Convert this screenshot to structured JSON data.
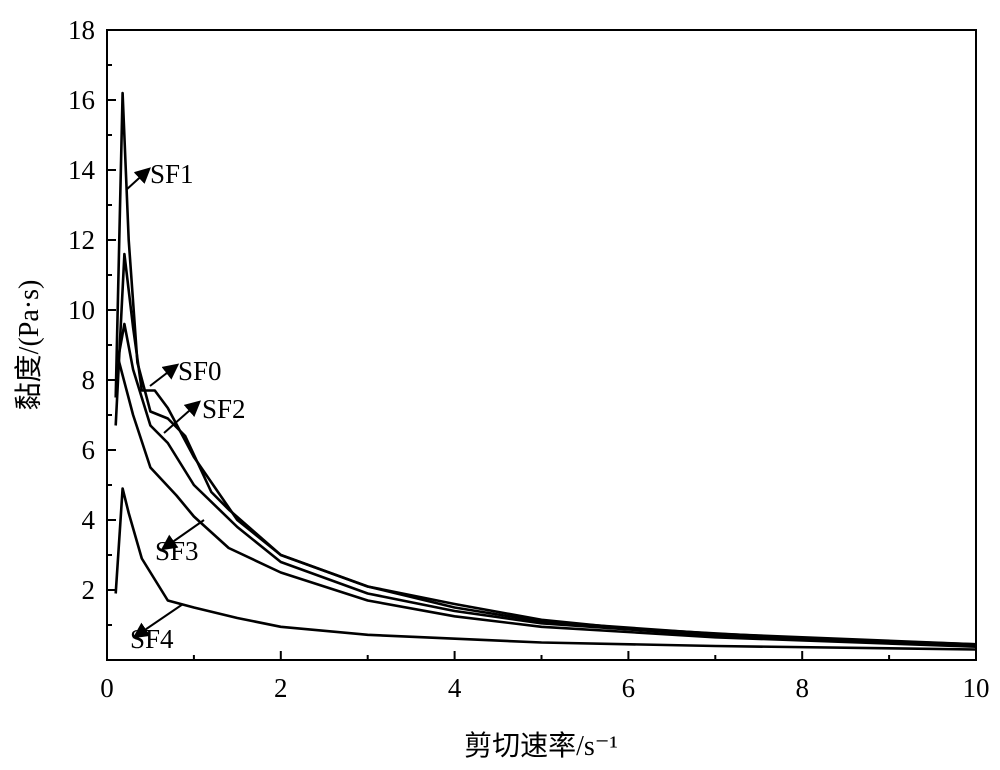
{
  "chart_data": {
    "type": "line",
    "title": "",
    "xlabel": "剪切速率/s⁻¹",
    "ylabel": "黏度/(Pa·s)",
    "xlim": [
      0,
      10
    ],
    "ylim": [
      0,
      18
    ],
    "xticks": [
      0,
      2,
      4,
      6,
      8,
      10
    ],
    "yticks": [
      2,
      4,
      6,
      8,
      10,
      12,
      14,
      16,
      18
    ],
    "grid": false,
    "legend": "none (inline arrow labels)",
    "color": "#000000",
    "series": [
      {
        "name": "SF0",
        "x": [
          0.1,
          0.2,
          0.3,
          0.4,
          0.55,
          0.7,
          1.0,
          1.5,
          2,
          3,
          4,
          5,
          6,
          8,
          10
        ],
        "y": [
          6.7,
          11.6,
          9.5,
          7.7,
          7.7,
          7.2,
          5.8,
          4.0,
          3.0,
          2.1,
          1.6,
          1.15,
          0.9,
          0.62,
          0.45
        ]
      },
      {
        "name": "SF1",
        "x": [
          0.1,
          0.18,
          0.25,
          0.35,
          0.5,
          0.7,
          0.9,
          1.2,
          1.4,
          2,
          3,
          4,
          5,
          7,
          10
        ],
        "y": [
          7.5,
          16.2,
          12,
          8.5,
          7.1,
          6.9,
          6.4,
          4.8,
          4.3,
          3.0,
          2.1,
          1.5,
          1.1,
          0.75,
          0.45
        ]
      },
      {
        "name": "SF2",
        "x": [
          0.12,
          0.2,
          0.3,
          0.5,
          0.7,
          1.0,
          1.5,
          2,
          3,
          4,
          5,
          7,
          10
        ],
        "y": [
          8.5,
          9.6,
          8.3,
          6.7,
          6.2,
          5.0,
          3.8,
          2.8,
          1.9,
          1.4,
          1.05,
          0.7,
          0.42
        ]
      },
      {
        "name": "SF3",
        "x": [
          0.12,
          0.3,
          0.5,
          0.8,
          1.0,
          1.4,
          2,
          3,
          4,
          5,
          7,
          10
        ],
        "y": [
          8.7,
          7.0,
          5.5,
          4.7,
          4.1,
          3.2,
          2.5,
          1.7,
          1.25,
          0.95,
          0.65,
          0.38
        ]
      },
      {
        "name": "SF4",
        "x": [
          0.1,
          0.18,
          0.25,
          0.4,
          0.7,
          1.0,
          1.5,
          2,
          3,
          5,
          7,
          10
        ],
        "y": [
          1.9,
          4.9,
          4.2,
          2.9,
          1.7,
          1.5,
          1.2,
          0.95,
          0.72,
          0.5,
          0.4,
          0.3
        ]
      }
    ]
  }
}
